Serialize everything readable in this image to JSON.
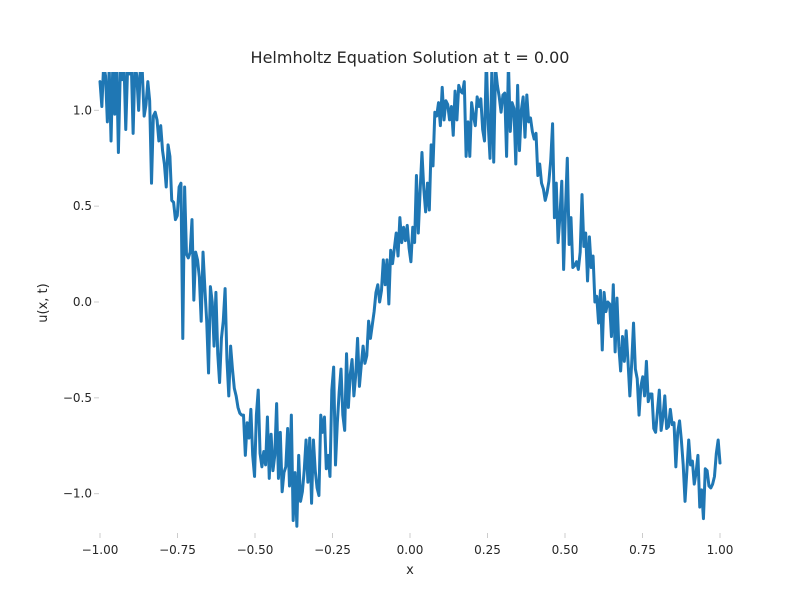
{
  "chart_data": {
    "type": "line",
    "title": "Helmholtz Equation Solution at t = 0.00",
    "xlabel": "x",
    "ylabel": "u(x, t)",
    "xlim": [
      -1.0,
      1.0
    ],
    "ylim": [
      -1.2,
      1.2
    ],
    "x_ticks": [
      -1.0,
      -0.75,
      -0.5,
      -0.25,
      0.0,
      0.25,
      0.5,
      0.75,
      1.0
    ],
    "x_tick_labels": [
      "−1.00",
      "−0.75",
      "−0.50",
      "−0.25",
      "0.00",
      "0.25",
      "0.50",
      "0.75",
      "1.00"
    ],
    "y_ticks": [
      -1.0,
      -0.5,
      0.0,
      0.5,
      1.0
    ],
    "y_tick_labels": [
      "−1.0",
      "−0.5",
      "0.0",
      "0.5",
      "1.0"
    ],
    "grid": false,
    "colors": {
      "series": "#1f77b4"
    },
    "series": [
      {
        "x_start": -1.0,
        "x_end": 1.0,
        "values": [
          1.15,
          1.02,
          1.24,
          1.18,
          0.94,
          1.22,
          0.84,
          1.25,
          0.98,
          1.26,
          0.78,
          1.2,
          1.16,
          1.26,
          0.9,
          1.22,
          1.19,
          1.25,
          0.88,
          1.24,
          1.18,
          1.0,
          1.24,
          1.2,
          0.97,
          1.03,
          1.15,
          1.05,
          0.62,
          0.97,
          0.99,
          0.95,
          0.84,
          0.92,
          0.79,
          0.72,
          0.6,
          0.82,
          0.76,
          0.53,
          0.52,
          0.43,
          0.45,
          0.6,
          0.62,
          -0.19,
          0.6,
          0.25,
          0.23,
          0.26,
          0.43,
          0.01,
          0.26,
          0.22,
          0.13,
          -0.1,
          0.26,
          0.07,
          -0.1,
          -0.37,
          0.08,
          0.0,
          -0.23,
          0.05,
          -0.27,
          -0.42,
          -0.19,
          -0.1,
          0.07,
          -0.3,
          -0.49,
          -0.23,
          -0.35,
          -0.45,
          -0.49,
          -0.55,
          -0.58,
          -0.59,
          -0.59,
          -0.8,
          -0.63,
          -0.71,
          -0.56,
          -0.8,
          -0.91,
          -0.59,
          -0.46,
          -0.79,
          -0.86,
          -0.78,
          -0.85,
          -0.6,
          -0.92,
          -0.69,
          -0.88,
          -0.8,
          -0.53,
          -0.92,
          -0.68,
          -0.99,
          -0.89,
          -0.86,
          -0.66,
          -0.96,
          -0.59,
          -1.14,
          -0.89,
          -1.17,
          -0.8,
          -1.04,
          -0.99,
          -0.88,
          -0.72,
          -0.94,
          -0.71,
          -1.05,
          -0.72,
          -0.88,
          -0.97,
          -1.01,
          -0.59,
          -0.68,
          -0.6,
          -0.87,
          -0.8,
          -0.91,
          -0.46,
          -0.34,
          -0.85,
          -0.63,
          -0.47,
          -0.35,
          -0.59,
          -0.67,
          -0.27,
          -0.55,
          -0.38,
          -0.3,
          -0.49,
          -0.38,
          -0.19,
          -0.44,
          -0.33,
          -0.23,
          -0.32,
          -0.28,
          -0.1,
          -0.19,
          -0.12,
          -0.05,
          0.05,
          0.09,
          0.0,
          0.06,
          0.22,
          0.09,
          0.22,
          -0.01,
          0.27,
          0.2,
          0.28,
          0.36,
          0.24,
          0.44,
          0.31,
          0.39,
          0.32,
          0.4,
          0.28,
          0.21,
          0.39,
          0.31,
          0.66,
          0.36,
          0.58,
          0.78,
          0.59,
          0.47,
          0.62,
          0.48,
          0.82,
          0.71,
          0.99,
          0.97,
          1.04,
          0.92,
          1.12,
          0.95,
          1.05,
          1.03,
          0.95,
          1.02,
          0.87,
          1.1,
          0.95,
          1.13,
          1.1,
          1.09,
          1.15,
          0.76,
          0.94,
          0.76,
          1.04,
          0.97,
          0.92,
          1.07,
          1.02,
          1.06,
          0.9,
          0.84,
          1.27,
          0.93,
          0.75,
          1.22,
          0.73,
          1.22,
          1.13,
          1.07,
          0.99,
          1.08,
          1.09,
          0.76,
          1.25,
          0.89,
          1.04,
          1.01,
          0.72,
          1.13,
          0.79,
          1.0,
          1.07,
          0.86,
          1.08,
          0.94,
          0.96,
          0.89,
          0.85,
          0.88,
          0.66,
          0.72,
          0.62,
          0.59,
          0.53,
          0.57,
          0.63,
          0.74,
          0.93,
          0.44,
          0.62,
          0.31,
          0.45,
          0.63,
          0.17,
          0.48,
          0.75,
          0.3,
          0.44,
          0.18,
          0.19,
          0.21,
          0.17,
          0.26,
          0.56,
          0.29,
          0.36,
          0.11,
          0.34,
          0.18,
          0.24,
          0.0,
          0.03,
          -0.11,
          0.06,
          -0.25,
          0.05,
          -0.05,
          0.0,
          -0.01,
          -0.18,
          0.09,
          -0.26,
          0.02,
          -0.23,
          -0.36,
          -0.18,
          -0.31,
          -0.15,
          -0.31,
          -0.49,
          -0.32,
          -0.11,
          -0.35,
          -0.4,
          -0.59,
          -0.44,
          -0.39,
          -0.49,
          -0.31,
          -0.52,
          -0.48,
          -0.48,
          -0.66,
          -0.68,
          -0.57,
          -0.46,
          -0.67,
          -0.6,
          -0.49,
          -0.66,
          -0.65,
          -0.56,
          -0.64,
          -0.63,
          -0.86,
          -0.68,
          -0.62,
          -0.72,
          -0.85,
          -1.04,
          -0.88,
          -0.72,
          -0.85,
          -0.83,
          -0.95,
          -0.89,
          -0.8,
          -1.07,
          -0.98,
          -1.13,
          -0.87,
          -0.88,
          -0.96,
          -0.97,
          -0.95,
          -0.91,
          -0.79,
          -0.72,
          -0.84
        ]
      }
    ]
  }
}
